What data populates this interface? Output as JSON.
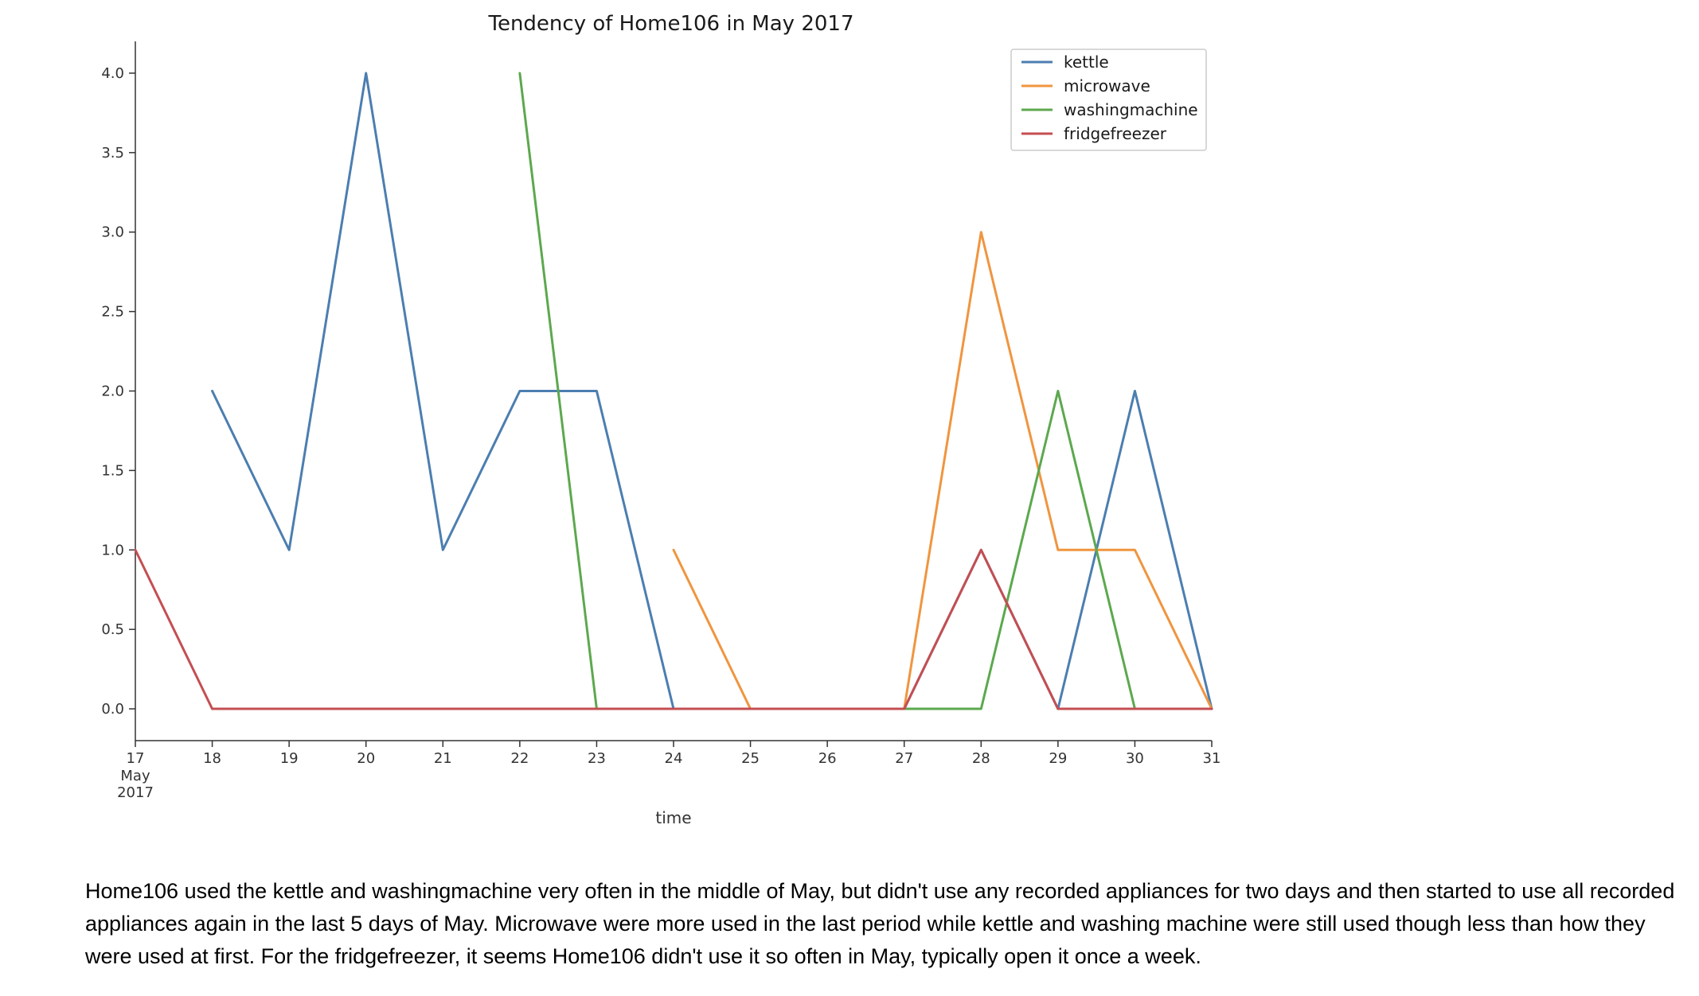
{
  "chart_data": {
    "type": "line",
    "title": "Tendency of Home106 in May 2017",
    "xlabel": "time",
    "ylabel": "",
    "x": [
      17,
      18,
      19,
      20,
      21,
      22,
      23,
      24,
      25,
      26,
      27,
      28,
      29,
      30,
      31
    ],
    "x_tick_labels": [
      "17",
      "18",
      "19",
      "20",
      "21",
      "22",
      "23",
      "24",
      "25",
      "26",
      "27",
      "28",
      "29",
      "30",
      "31"
    ],
    "x_first_tick_sublabels": [
      "May",
      "2017"
    ],
    "xlim": [
      17,
      31
    ],
    "yticks": [
      0.0,
      0.5,
      1.0,
      1.5,
      2.0,
      2.5,
      3.0,
      3.5,
      4.0
    ],
    "y_tick_labels": [
      "0.0",
      "0.5",
      "1.0",
      "1.5",
      "2.0",
      "2.5",
      "3.0",
      "3.5",
      "4.0"
    ],
    "ylim": [
      -0.2,
      4.2
    ],
    "grid": false,
    "legend_position": "top-right",
    "series": [
      {
        "name": "kettle",
        "color": "#4c7eb0",
        "values": [
          null,
          2,
          1,
          4,
          1,
          2,
          2,
          0,
          0,
          0,
          0,
          1,
          0,
          2,
          0
        ]
      },
      {
        "name": "microwave",
        "color": "#f0953f",
        "values": [
          null,
          null,
          null,
          null,
          null,
          null,
          null,
          1,
          0,
          0,
          0,
          3,
          1,
          1,
          0
        ]
      },
      {
        "name": "washingmachine",
        "color": "#5ca84e",
        "values": [
          null,
          null,
          null,
          null,
          null,
          4,
          0,
          0,
          0,
          0,
          0,
          0,
          2,
          0,
          0
        ]
      },
      {
        "name": "fridgefreezer",
        "color": "#c44e52",
        "values": [
          1,
          0,
          0,
          0,
          0,
          0,
          0,
          0,
          0,
          0,
          0,
          1,
          0,
          0,
          0
        ]
      }
    ]
  },
  "caption": "Home106 used the kettle and washingmachine very often in the middle of May, but didn't use any recorded appliances for two days and then started to use all recorded appliances again in the last 5 days of May. Microwave were more used in the last period while kettle and washing machine were still used though less than how they were used at first. For the fridgefreezer, it seems Home106 didn't use it so often in May, typically open it once a week."
}
